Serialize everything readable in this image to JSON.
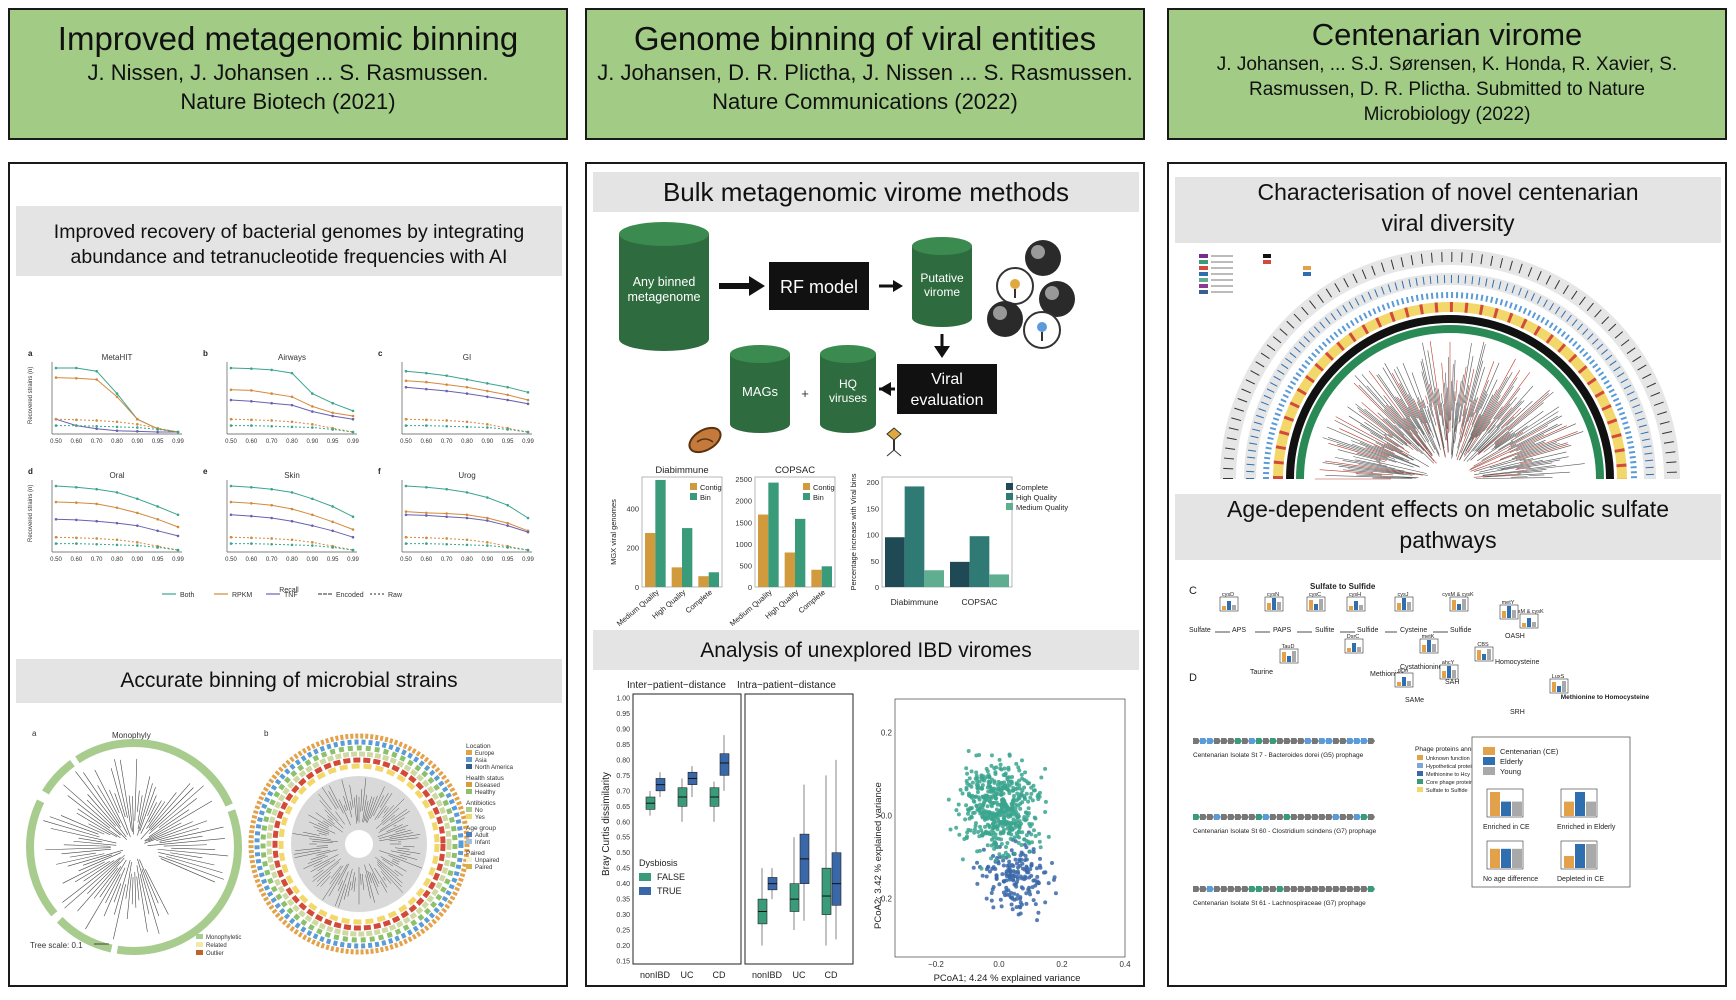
{
  "columns": [
    {
      "title": "Improved metagenomic binning",
      "subtitle": "J. Nissen, J. Johansen ... S. Rasmussen. Nature Biotech (2021)"
    },
    {
      "title": "Genome binning of viral entities",
      "subtitle": "J. Johansen, D. R. Plictha, J. Nissen ... S. Rasmussen. Nature Communications (2022)"
    },
    {
      "title": "Centenarian virome",
      "subtitle": "J. Johansen, ... S.J. Sørensen, K. Honda, R. Xavier, S. Rasmussen, D. R. Plictha. Submitted to Nature Microbiology (2022)"
    }
  ],
  "left_panel": {
    "band1": "Improved recovery of bacterial genomes by integrating abundance and tetranucleotide frequencies with AI",
    "band2": "Accurate binning of microbial strains",
    "recall_label": "Recall",
    "y_label": "Recovered strains (n)",
    "legend": [
      "Both",
      "RPKM",
      "TNF",
      "Encoded",
      "Raw"
    ],
    "subplot_titles": [
      "MetaHIT",
      "Airways",
      "GI",
      "Oral",
      "Skin",
      "Urog"
    ],
    "subplot_letters": [
      "a",
      "b",
      "c",
      "d",
      "e",
      "f"
    ],
    "x_ticks": [
      "0.50",
      "0.60",
      "0.70",
      "0.80",
      "0.90",
      "0.95",
      "0.99"
    ],
    "tree_a_label": "Monophyly",
    "tree_scale": "Tree scale: 0.1",
    "tree_a_legend": [
      "Monophyletic",
      "Related",
      "Outlier"
    ],
    "tree_b_legend": {
      "Location": [
        "Europe",
        "Asia",
        "North America"
      ],
      "Health status": [
        "Diseased",
        "Healthy"
      ],
      "Antibiotics": [
        "No",
        "Yes"
      ],
      "Age group": [
        "Adult",
        "Infant"
      ],
      "Paired": [
        "Unpaired",
        "Paired"
      ]
    }
  },
  "middle_panel": {
    "band1": "Bulk metagenomic virome methods",
    "band2": "Analysis of unexplored IBD viromes",
    "flow": {
      "input": "Any binned metagenome",
      "model": "RF model",
      "putative": "Putative virome",
      "eval": "Viral evaluation",
      "mags": "MAGs",
      "plus": "+",
      "hq": "HQ viruses"
    },
    "box_legend_title": "Dysbiosis",
    "box_legend": [
      "FALSE",
      "TRUE"
    ],
    "box_y_label": "Bray Curtis dissimilarity",
    "pcoa_x_label": "PCoA1; 4.24  % explained variance",
    "pcoa_y_label": "PCoA2; 3.42  % explained variance",
    "colors": {
      "green": "#2e6b3e",
      "teal": "#3a9b7a",
      "blue": "#3a67a8",
      "orange": "#d19a3c"
    }
  },
  "right_panel": {
    "band1": "Characterisation of novel centenarian viral diversity",
    "band2": "Age-dependent effects on metabolic sulfate pathways",
    "pathway": {
      "panel_c": "C",
      "panel_d": "D",
      "title": "Sulfate to Sulfide",
      "nodes": [
        "Sulfate",
        "APS",
        "PAPS",
        "Sulfite",
        "Sulfide",
        "Cysteine",
        "Sulfide",
        "OASH",
        "Taurine",
        "Cystathionine",
        "Homocysteine",
        "Methionine",
        "SAMe",
        "SAH",
        "SRH"
      ],
      "genes": [
        "cysD",
        "cysN",
        "cysC",
        "cysH",
        "cysJ",
        "cysM & cysK",
        "cysM & cysK",
        "metY",
        "TauD",
        "DsrC",
        "metK",
        "CBS",
        "dcm",
        "ahcY",
        "LuxS"
      ],
      "met_note": "Methionine to Homocysteine"
    },
    "prophages": [
      "Centenarian Isolate St 7 - Bacteroides dorei (G5) prophage",
      "Centenarian Isolate St 60 - Clostridium scindens (G7) prophage",
      "Centenarian Isolate St 61 - Lachnospiraceae (G7) prophage"
    ],
    "phage_annotation_title": "Phage proteins annotation",
    "phage_annotation": [
      "Unknown function",
      "Hypothetical protein",
      "Methionine to Hcy",
      "Core phage proteins",
      "Sulfate to Sulfide"
    ],
    "age_legend": [
      "Centenarian (CE)",
      "Elderly",
      "Young"
    ],
    "age_boxes": [
      "Enriched in CE",
      "Enriched in Elderly",
      "No age difference",
      "Depleted in CE"
    ]
  },
  "chart_data": [
    {
      "type": "bar",
      "title": "Diabimmune",
      "ylabel": "MGX viral genomes",
      "categories": [
        "Medium Quality",
        "High Quality",
        "Complete"
      ],
      "series": [
        {
          "name": "Contig",
          "values": [
            275,
            100,
            55
          ]
        },
        {
          "name": "Bin",
          "values": [
            545,
            300,
            75
          ]
        }
      ],
      "ylim": [
        0,
        560
      ],
      "yticks": [
        0,
        200,
        400
      ]
    },
    {
      "type": "bar",
      "title": "COPSAC",
      "categories": [
        "Medium Quality",
        "High Quality",
        "Complete"
      ],
      "series": [
        {
          "name": "Contig",
          "values": [
            1680,
            800,
            400
          ]
        },
        {
          "name": "Bin",
          "values": [
            2420,
            1580,
            480
          ]
        }
      ],
      "ylim": [
        0,
        2550
      ],
      "yticks": [
        0,
        500,
        1000,
        1500,
        2000,
        2500
      ]
    },
    {
      "type": "bar",
      "ylabel": "Percentage increase with Viral bins",
      "categories": [
        "Diabimmune",
        "COPSAC"
      ],
      "series": [
        {
          "name": "Complete",
          "values": [
            95,
            48
          ]
        },
        {
          "name": "High Quality",
          "values": [
            192,
            97
          ]
        },
        {
          "name": "Medium Quality",
          "values": [
            32,
            24
          ]
        }
      ],
      "ylim": [
        0,
        210
      ],
      "yticks": [
        0,
        50,
        100,
        150,
        200
      ]
    }
  ]
}
